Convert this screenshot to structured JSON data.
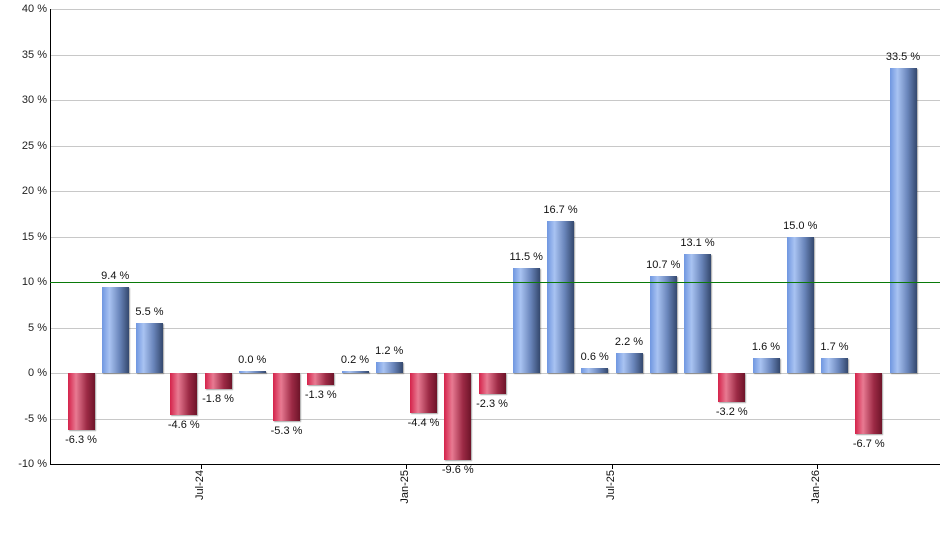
{
  "chart_data": {
    "type": "bar",
    "title": "",
    "xlabel": "",
    "ylabel": "",
    "ylim": [
      -10,
      40
    ],
    "yticks": [
      "-10 %",
      "-5 %",
      "0 %",
      "5 %",
      "10 %",
      "15 %",
      "20 %",
      "25 %",
      "30 %",
      "35 %",
      "40 %"
    ],
    "ytick_values": [
      -10,
      -5,
      0,
      5,
      10,
      15,
      20,
      25,
      30,
      35,
      40
    ],
    "xtick_labels": [
      {
        "label": "Jul-24",
        "index": 3
      },
      {
        "label": "Jan-25",
        "index": 9
      },
      {
        "label": "Jul-25",
        "index": 15
      },
      {
        "label": "Jan-26",
        "index": 21
      }
    ],
    "reference_line": {
      "value": 10,
      "color": "#0a7a0a"
    },
    "grid": true,
    "legend": null,
    "colors": {
      "positive": "#7a9ee0",
      "negative": "#c8284c"
    },
    "values": [
      -6.3,
      9.4,
      5.5,
      -4.6,
      -1.8,
      0.0,
      -5.3,
      -1.3,
      0.2,
      1.2,
      -4.4,
      -9.6,
      -2.3,
      11.5,
      16.7,
      0.6,
      2.2,
      10.7,
      13.1,
      -3.2,
      1.6,
      15.0,
      1.7,
      -6.7,
      33.5
    ],
    "labels": [
      "-6.3 %",
      "9.4 %",
      "5.5 %",
      "-4.6 %",
      "-1.8 %",
      "0.0 %",
      "-5.3 %",
      "-1.3 %",
      "0.2 %",
      "1.2 %",
      "-4.4 %",
      "-9.6 %",
      "-2.3 %",
      "11.5 %",
      "16.7 %",
      "0.6 %",
      "2.2 %",
      "10.7 %",
      "13.1 %",
      "-3.2 %",
      "1.6 %",
      "15.0 %",
      "1.7 %",
      "-6.7 %",
      "33.5 %"
    ]
  }
}
